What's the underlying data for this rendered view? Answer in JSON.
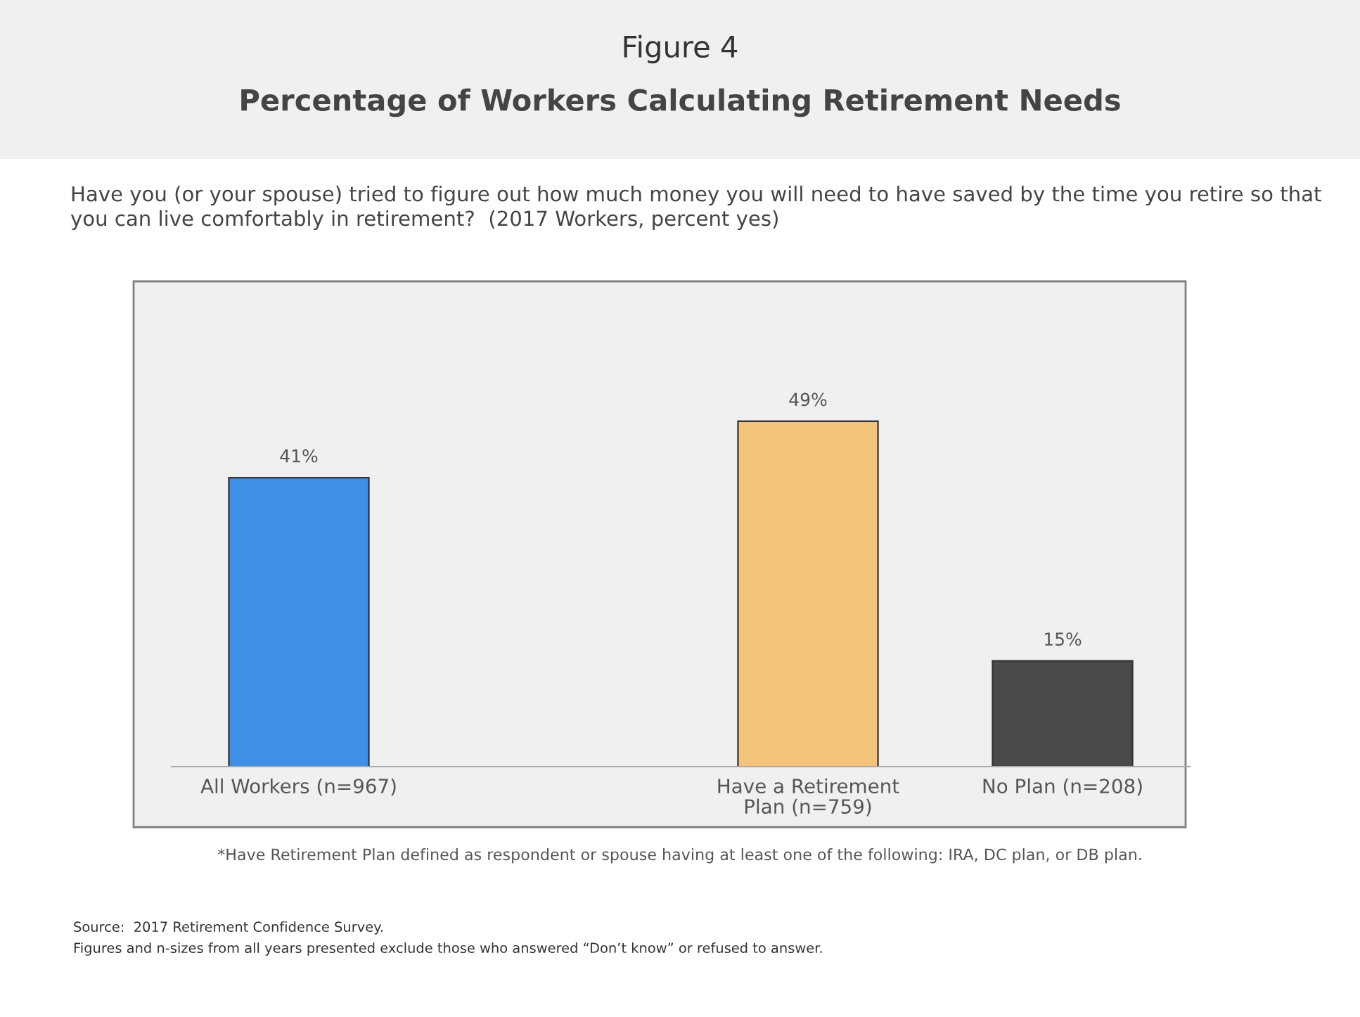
{
  "chart_data": {
    "type": "bar",
    "title": "Figure 4",
    "subtitle": "Percentage of Workers Calculating Retirement Needs",
    "categories": [
      "All Workers (n=967)",
      null,
      "Have a Retirement\nPlan (n=759)",
      "No Plan (n=208)"
    ],
    "values": [
      41,
      null,
      49,
      15
    ],
    "colors": [
      "#3f8fe6",
      null,
      "#f5c47c",
      "#4a4a4a"
    ],
    "value_labels": [
      "41%",
      null,
      "49%",
      "15%"
    ],
    "grid": false,
    "legend": false,
    "annotations": [
      "Have you (or your spouse) tried to figure out how much money you will need to have saved by the time you retire so that you can live comfortably in retirement?  (2017 Workers, percent yes)",
      "*Have Retirement Plan defined as respondent or spouse having at least one of the following: IRA, DC plan, or DB plan.",
      "Source:  2017 Retirement Confidence Survey.",
      "Figures and n-sizes from all years presented exclude those who answered “Don’t know” or refused to answer."
    ]
  }
}
